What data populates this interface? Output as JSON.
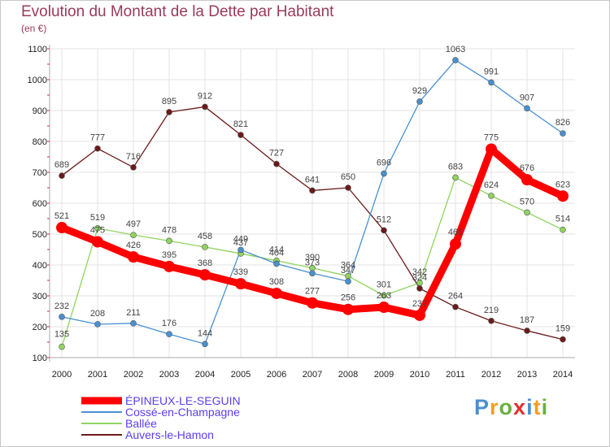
{
  "title": "Evolution du Montant de la Dette par Habitant",
  "unit_label": "(en €)",
  "logo_text": "Proxiti",
  "chart_data": {
    "type": "line",
    "title": "Evolution du Montant de la Dette par Habitant",
    "ylabel": "(en €)",
    "xlabel": "",
    "x": [
      "2000",
      "2001",
      "2002",
      "2003",
      "2004",
      "2005",
      "2006",
      "2007",
      "2008",
      "2009",
      "2010",
      "2011",
      "2012",
      "2013",
      "2014"
    ],
    "ylim": [
      100,
      1100
    ],
    "yticks": [
      100,
      200,
      300,
      400,
      500,
      600,
      700,
      800,
      900,
      1000,
      1100
    ],
    "grid": true,
    "legend_position": "bottom-left",
    "series": [
      {
        "name": "ÉPINEUX-LE-SEGUIN",
        "color": "#ff0000",
        "values": [
          521,
          475,
          426,
          395,
          368,
          339,
          308,
          277,
          256,
          263,
          237,
          468,
          775,
          676,
          623
        ]
      },
      {
        "name": "Cossé-en-Champagne",
        "color": "#4a90d0",
        "values": [
          232,
          208,
          211,
          176,
          144,
          449,
          404,
          373,
          347,
          696,
          929,
          1063,
          991,
          907,
          826
        ]
      },
      {
        "name": "Ballée",
        "color": "#8fd460",
        "values": [
          135,
          519,
          497,
          478,
          458,
          437,
          414,
          390,
          364,
          301,
          342,
          683,
          624,
          570,
          514
        ]
      },
      {
        "name": "Auvers-le-Hamon",
        "color": "#6b1a1a",
        "values": [
          689,
          777,
          716,
          895,
          912,
          821,
          727,
          641,
          650,
          512,
          324,
          264,
          219,
          187,
          159
        ]
      }
    ]
  }
}
